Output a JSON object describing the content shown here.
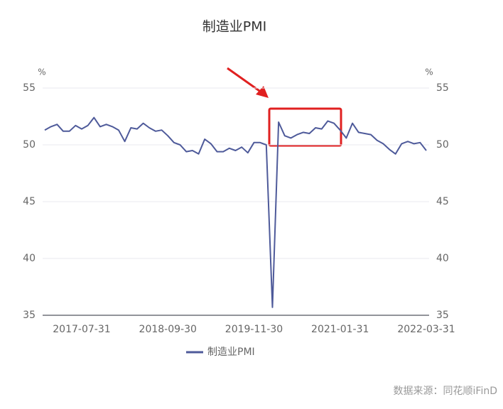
{
  "chart_data": {
    "type": "line",
    "title": "制造业PMI",
    "x": [
      "2017-01-31",
      "2017-02-28",
      "2017-03-31",
      "2017-04-30",
      "2017-05-31",
      "2017-06-30",
      "2017-07-31",
      "2017-08-31",
      "2017-09-30",
      "2017-10-31",
      "2017-11-30",
      "2017-12-31",
      "2018-01-31",
      "2018-02-28",
      "2018-03-31",
      "2018-04-30",
      "2018-05-31",
      "2018-06-30",
      "2018-07-31",
      "2018-08-31",
      "2018-09-30",
      "2018-10-31",
      "2018-11-30",
      "2018-12-31",
      "2019-01-31",
      "2019-02-28",
      "2019-03-31",
      "2019-04-30",
      "2019-05-31",
      "2019-06-30",
      "2019-07-31",
      "2019-08-31",
      "2019-09-30",
      "2019-10-31",
      "2019-11-30",
      "2019-12-31",
      "2020-01-31",
      "2020-02-29",
      "2020-03-31",
      "2020-04-30",
      "2020-05-31",
      "2020-06-30",
      "2020-07-31",
      "2020-08-31",
      "2020-09-30",
      "2020-10-31",
      "2020-11-30",
      "2020-12-31",
      "2021-01-31",
      "2021-02-28",
      "2021-03-31",
      "2021-04-30",
      "2021-05-31",
      "2021-06-30",
      "2021-07-31",
      "2021-08-31",
      "2021-09-30",
      "2021-10-31",
      "2021-11-30",
      "2021-12-31",
      "2022-01-31",
      "2022-02-28",
      "2022-03-31"
    ],
    "series": [
      {
        "name": "制造业PMI",
        "color": "#4e5a9a",
        "values": [
          51.3,
          51.6,
          51.8,
          51.2,
          51.2,
          51.7,
          51.4,
          51.7,
          52.4,
          51.6,
          51.8,
          51.6,
          51.3,
          50.3,
          51.5,
          51.4,
          51.9,
          51.5,
          51.2,
          51.3,
          50.8,
          50.2,
          50.0,
          49.4,
          49.5,
          49.2,
          50.5,
          50.1,
          49.4,
          49.4,
          49.7,
          49.5,
          49.8,
          49.3,
          50.2,
          50.2,
          50.0,
          35.7,
          52.0,
          50.8,
          50.6,
          50.9,
          51.1,
          51.0,
          51.5,
          51.4,
          52.1,
          51.9,
          51.3,
          50.6,
          51.9,
          51.1,
          51.0,
          50.9,
          50.4,
          50.1,
          49.6,
          49.2,
          50.1,
          50.3,
          50.1,
          50.2,
          49.5
        ]
      }
    ],
    "xticks": [
      "2017-07-31",
      "2018-09-30",
      "2019-11-30",
      "2021-01-31",
      "2022-03-31"
    ],
    "ylim": [
      35,
      55
    ],
    "yticks": [
      35,
      40,
      45,
      50,
      55
    ],
    "y2lim": [
      35,
      55
    ],
    "y2ticks": [
      35,
      40,
      45,
      50,
      55
    ],
    "y_unit": "%",
    "y2_unit": "%",
    "grid": true,
    "legend": "bottom",
    "source": "数据来源：同花顺iFinD"
  }
}
